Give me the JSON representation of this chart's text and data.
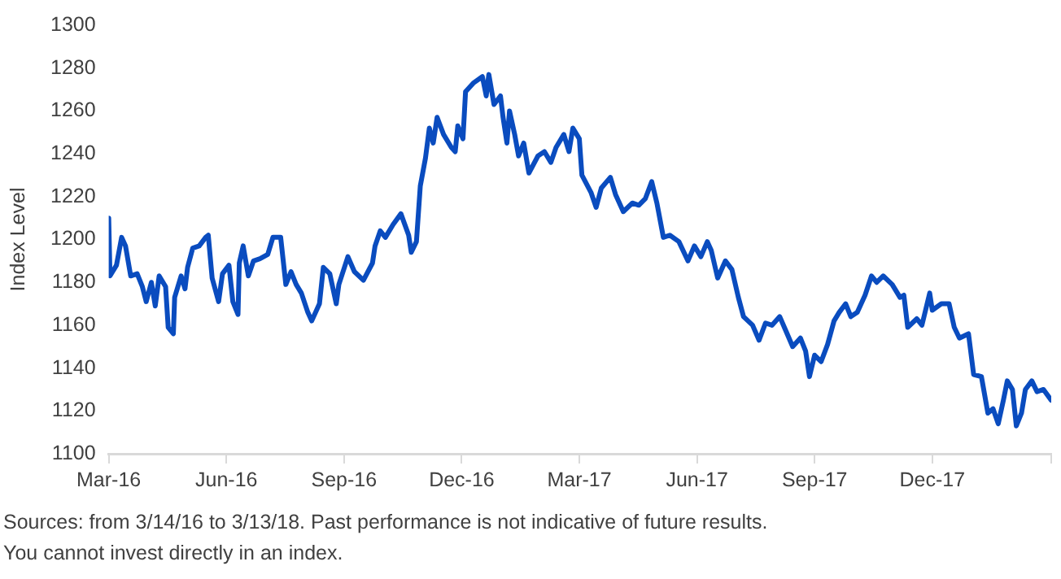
{
  "chart_data": {
    "type": "line",
    "ylabel": "Index Level",
    "annotations": [
      "Sources: from 3/14/16 to 3/13/18. Past performance is not indicative of future results.",
      "You cannot invest directly in an index."
    ],
    "xlim": [
      "2016-03-14",
      "2018-03-13"
    ],
    "xticks": [
      {
        "value": "2016-03-14",
        "label": "Mar-16"
      },
      {
        "value": "2016-06-13",
        "label": "Jun-16"
      },
      {
        "value": "2016-09-12",
        "label": "Sep-16"
      },
      {
        "value": "2016-12-12",
        "label": "Dec-16"
      },
      {
        "value": "2017-03-13",
        "label": "Mar-17"
      },
      {
        "value": "2017-06-12",
        "label": "Jun-17"
      },
      {
        "value": "2017-09-11",
        "label": "Sep-17"
      },
      {
        "value": "2017-12-11",
        "label": "Dec-17"
      },
      {
        "value": "2018-03-13",
        "label": null
      }
    ],
    "ylim": [
      1100,
      1300
    ],
    "yticks": [
      1100,
      1120,
      1140,
      1160,
      1180,
      1200,
      1220,
      1240,
      1260,
      1280,
      1300
    ],
    "grid": false,
    "legend": false,
    "marker": "none",
    "line_style": "solid",
    "x": [
      "2016-03-14",
      "2016-03-15",
      "2016-03-20",
      "2016-03-24",
      "2016-03-27",
      "2016-03-31",
      "2016-04-05",
      "2016-04-09",
      "2016-04-12",
      "2016-04-16",
      "2016-04-19",
      "2016-04-22",
      "2016-04-27",
      "2016-04-29",
      "2016-05-03",
      "2016-05-04",
      "2016-05-09",
      "2016-05-12",
      "2016-05-14",
      "2016-05-18",
      "2016-05-23",
      "2016-05-28",
      "2016-05-30",
      "2016-06-02",
      "2016-06-07",
      "2016-06-10",
      "2016-06-15",
      "2016-06-18",
      "2016-06-22",
      "2016-06-23",
      "2016-06-26",
      "2016-06-30",
      "2016-07-04",
      "2016-07-09",
      "2016-07-15",
      "2016-07-19",
      "2016-07-25",
      "2016-07-29",
      "2016-08-02",
      "2016-08-06",
      "2016-08-10",
      "2016-08-15",
      "2016-08-18",
      "2016-08-24",
      "2016-08-27",
      "2016-09-01",
      "2016-09-06",
      "2016-09-08",
      "2016-09-15",
      "2016-09-20",
      "2016-09-27",
      "2016-10-04",
      "2016-10-06",
      "2016-10-10",
      "2016-10-14",
      "2016-10-20",
      "2016-10-26",
      "2016-11-01",
      "2016-11-03",
      "2016-11-07",
      "2016-11-10",
      "2016-11-14",
      "2016-11-17",
      "2016-11-20",
      "2016-11-23",
      "2016-11-28",
      "2016-12-04",
      "2016-12-07",
      "2016-12-09",
      "2016-12-13",
      "2016-12-15",
      "2016-12-21",
      "2016-12-28",
      "2016-12-31",
      "2017-01-02",
      "2017-01-06",
      "2017-01-11",
      "2017-01-13",
      "2017-01-16",
      "2017-01-18",
      "2017-01-22",
      "2017-01-25",
      "2017-01-29",
      "2017-02-02",
      "2017-02-09",
      "2017-02-14",
      "2017-02-19",
      "2017-02-23",
      "2017-03-01",
      "2017-03-05",
      "2017-03-08",
      "2017-03-13",
      "2017-03-15",
      "2017-03-22",
      "2017-03-26",
      "2017-03-30",
      "2017-04-06",
      "2017-04-10",
      "2017-04-16",
      "2017-04-23",
      "2017-04-28",
      "2017-05-03",
      "2017-05-08",
      "2017-05-12",
      "2017-05-17",
      "2017-05-22",
      "2017-05-29",
      "2017-06-05",
      "2017-06-10",
      "2017-06-15",
      "2017-06-20",
      "2017-06-23",
      "2017-06-28",
      "2017-07-04",
      "2017-07-09",
      "2017-07-14",
      "2017-07-18",
      "2017-07-25",
      "2017-07-30",
      "2017-08-04",
      "2017-08-09",
      "2017-08-15",
      "2017-08-20",
      "2017-08-25",
      "2017-08-31",
      "2017-09-04",
      "2017-09-07",
      "2017-09-11",
      "2017-09-16",
      "2017-09-21",
      "2017-09-26",
      "2017-09-30",
      "2017-10-05",
      "2017-10-09",
      "2017-10-14",
      "2017-10-20",
      "2017-10-25",
      "2017-10-29",
      "2017-11-03",
      "2017-11-10",
      "2017-11-16",
      "2017-11-19",
      "2017-11-22",
      "2017-11-29",
      "2017-12-03",
      "2017-12-09",
      "2017-12-11",
      "2017-12-18",
      "2017-12-24",
      "2017-12-28",
      "2018-01-01",
      "2018-01-08",
      "2018-01-12",
      "2018-01-18",
      "2018-01-23",
      "2018-01-27",
      "2018-01-31",
      "2018-02-04",
      "2018-02-07",
      "2018-02-11",
      "2018-02-14",
      "2018-02-18",
      "2018-02-21",
      "2018-02-26",
      "2018-03-02",
      "2018-03-07",
      "2018-03-13"
    ],
    "series": [
      {
        "color": "#0a4cbf",
        "values": [
          1210,
          1183,
          1188,
          1201,
          1197,
          1183,
          1184,
          1178,
          1171,
          1180,
          1169,
          1183,
          1178,
          1159,
          1156,
          1173,
          1183,
          1177,
          1187,
          1196,
          1197,
          1201,
          1202,
          1182,
          1171,
          1184,
          1188,
          1171,
          1165,
          1189,
          1197,
          1183,
          1190,
          1191,
          1193,
          1201,
          1201,
          1179,
          1185,
          1179,
          1175,
          1166,
          1162,
          1170,
          1187,
          1184,
          1170,
          1179,
          1192,
          1185,
          1181,
          1189,
          1197,
          1204,
          1201,
          1207,
          1212,
          1202,
          1194,
          1199,
          1225,
          1238,
          1252,
          1245,
          1257,
          1249,
          1243,
          1241,
          1253,
          1247,
          1269,
          1273,
          1276,
          1267,
          1277,
          1263,
          1267,
          1257,
          1245,
          1260,
          1249,
          1239,
          1245,
          1231,
          1239,
          1241,
          1236,
          1243,
          1249,
          1241,
          1252,
          1247,
          1230,
          1222,
          1215,
          1224,
          1229,
          1221,
          1213,
          1217,
          1216,
          1219,
          1227,
          1217,
          1201,
          1202,
          1199,
          1190,
          1197,
          1192,
          1199,
          1195,
          1182,
          1190,
          1186,
          1173,
          1164,
          1160,
          1153,
          1161,
          1160,
          1164,
          1157,
          1150,
          1154,
          1148,
          1136,
          1146,
          1143,
          1151,
          1162,
          1166,
          1170,
          1164,
          1166,
          1174,
          1183,
          1180,
          1183,
          1179,
          1173,
          1174,
          1159,
          1163,
          1160,
          1175,
          1167,
          1170,
          1170,
          1159,
          1154,
          1156,
          1137,
          1136,
          1119,
          1121,
          1114,
          1125,
          1134,
          1130,
          1113,
          1119,
          1130,
          1134,
          1129,
          1130,
          1125
        ]
      }
    ]
  }
}
